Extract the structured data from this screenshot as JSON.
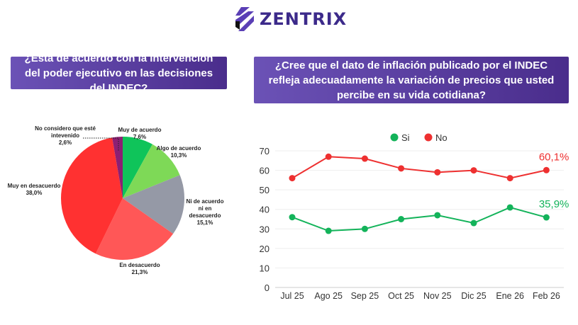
{
  "brand": {
    "name": "ZENTRIX"
  },
  "left_panel": {
    "question": "¿Está de acuerdo con la intervención del poder ejecutivo en las decisiones del INDEC?"
  },
  "right_panel": {
    "question": "¿Cree que el dato de inflación publicado por el INDEC refleja adecuadamente la variación de precios que usted percibe en su vida cotidiana?"
  },
  "chart_data": [
    {
      "type": "pie",
      "start": "top",
      "direction": "clockwise",
      "slices": [
        {
          "label": "Muy de acuerdo",
          "value": 7.6,
          "value_label": "7,6%",
          "color": "#0fc45a"
        },
        {
          "label": "Algo de acuerdo",
          "value": 10.3,
          "value_label": "10,3%",
          "color": "#7ed957"
        },
        {
          "label": "Ni de acuerdo ni en desacuerdo",
          "value": 15.1,
          "value_label": "15,1%",
          "color": "#9599a6"
        },
        {
          "label": "En desacuerdo",
          "value": 21.3,
          "value_label": "21,3%",
          "color": "#ff5757"
        },
        {
          "label": "Muy en desacuerdo",
          "value": 38.0,
          "value_label": "38,0%",
          "color": "#ff3131"
        },
        {
          "label": "No considero que esté intevenido",
          "value": 2.6,
          "value_label": "2,6%",
          "color": "#8c1f73"
        }
      ]
    },
    {
      "type": "line",
      "categories": [
        "Jul 25",
        "Ago 25",
        "Sep 25",
        "Oct 25",
        "Nov 25",
        "Dic 25",
        "Ene 26",
        "Feb 26"
      ],
      "ylim": [
        0,
        70
      ],
      "yticks": [
        0,
        10,
        20,
        30,
        40,
        50,
        60,
        70
      ],
      "grid": true,
      "legend": "top",
      "series": [
        {
          "name": "Si",
          "color": "#13b35a",
          "values": [
            36,
            29,
            30,
            35,
            37,
            33,
            41,
            35.9
          ],
          "end_label": "35,9%"
        },
        {
          "name": "No",
          "color": "#ee3030",
          "values": [
            56,
            67,
            66,
            61,
            59,
            60,
            56,
            60.1
          ],
          "end_label": "60,1%"
        }
      ]
    }
  ]
}
